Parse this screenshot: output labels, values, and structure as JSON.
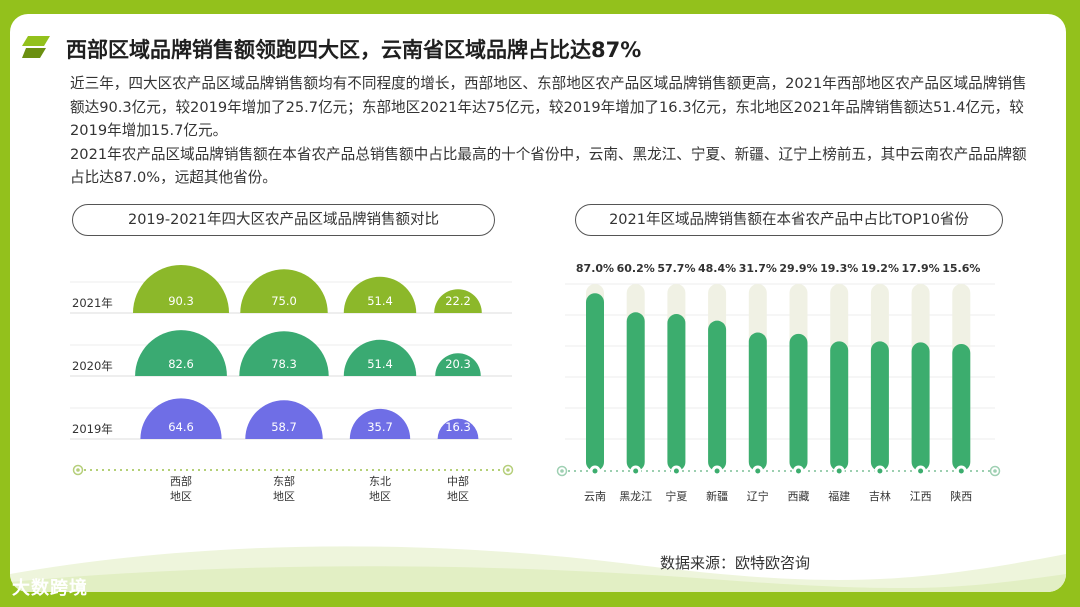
{
  "title": "西部区域品牌销售额领跑四大区，云南省区域品牌占比达87%",
  "description": [
    "近三年，四大区农产品区域品牌销售额均有不同程度的增长，西部地区、东部地区农产品区域品牌销售额更高，2021年西部地区农产品区域品牌销售额达90.3亿元，较2019年增加了25.7亿元；东部地区2021年达75亿元，较2019年增加了16.3亿元，东北地区2021年品牌销售额达51.4亿元，较2019年增加15.7亿元。",
    "2021年农产品区域品牌销售额在本省农产品总销售额中占比最高的十个省份中，云南、黑龙江、宁夏、新疆、辽宁上榜前五，其中云南农产品品牌额占比达87.0%，远超其他省份。"
  ],
  "source": "数据来源：欧特欧咨询",
  "logo": "大数跨境",
  "colors": {
    "frame": "#93c11c",
    "y2021": "#8cb82a",
    "y2020": "#3aaa72",
    "y2019": "#6f6ee6",
    "bar_fill": "#3cad6e",
    "bar_track": "#f0f1e4"
  },
  "chart_data": [
    {
      "type": "bar",
      "title": "2019-2021年四大区农产品区域品牌销售额对比",
      "categories": [
        "西部地区",
        "东部地区",
        "东北地区",
        "中部地区"
      ],
      "category_lines": [
        [
          "西部",
          "地区"
        ],
        [
          "东部",
          "地区"
        ],
        [
          "东北",
          "地区"
        ],
        [
          "中部",
          "地区"
        ]
      ],
      "series": [
        {
          "name": "2021年",
          "values": [
            90.3,
            75.0,
            51.4,
            22.2
          ],
          "labels": [
            "90.3",
            "75.0",
            "51.4",
            "22.2"
          ]
        },
        {
          "name": "2020年",
          "values": [
            82.6,
            78.3,
            51.4,
            20.3
          ],
          "labels": [
            "82.6",
            "78.3",
            "51.4",
            "20.3"
          ]
        },
        {
          "name": "2019年",
          "values": [
            64.6,
            58.7,
            35.7,
            16.3
          ],
          "labels": [
            "64.6",
            "58.7",
            "35.7",
            "16.3"
          ]
        }
      ],
      "unit": "亿元"
    },
    {
      "type": "bar",
      "title": "2021年区域品牌销售额在本省农产品中占比TOP10省份",
      "categories": [
        "云南",
        "黑龙江",
        "宁夏",
        "新疆",
        "辽宁",
        "西藏",
        "福建",
        "吉林",
        "江西",
        "陕西"
      ],
      "values": [
        87.0,
        60.2,
        57.7,
        48.4,
        31.7,
        29.9,
        19.3,
        19.2,
        17.9,
        15.6
      ],
      "labels": [
        "87.0%",
        "60.2%",
        "57.7%",
        "48.4%",
        "31.7%",
        "29.9%",
        "19.3%",
        "19.2%",
        "17.9%",
        "15.6%"
      ],
      "ylim": [
        0,
        100
      ],
      "unit": "%"
    }
  ]
}
